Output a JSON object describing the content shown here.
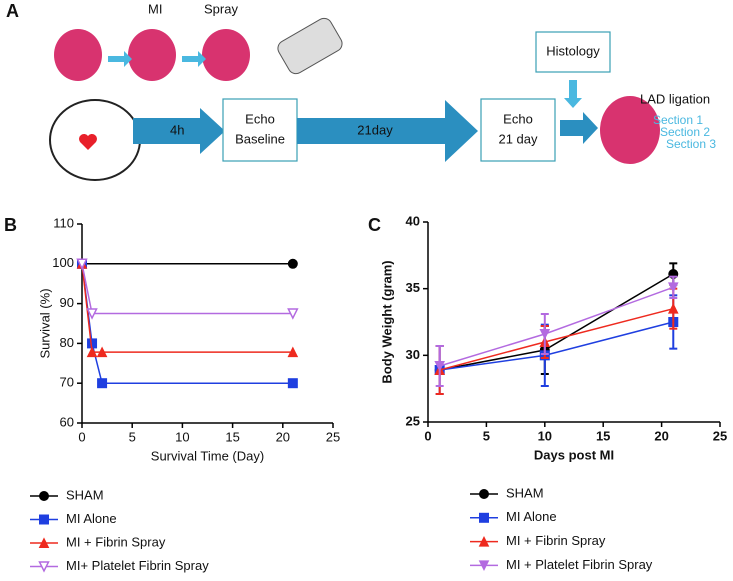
{
  "panel_labels": [
    "A",
    "B",
    "C"
  ],
  "diagram": {
    "mi": "MI",
    "spray": "Spray",
    "step1": "4h",
    "echo1": [
      "Echo",
      "Baseline"
    ],
    "step2": "21day",
    "echo2": [
      "Echo",
      "21 day"
    ],
    "histology": "Histology",
    "lad": "LAD ligation",
    "sections": [
      "Section 1",
      "Section 2",
      "Section 3"
    ]
  },
  "chart_data": [
    {
      "type": "line",
      "xlabel": "Survival Time (Day)",
      "ylabel": "Survival (%)",
      "xlim": [
        0,
        25
      ],
      "xticks": [
        0,
        5,
        10,
        15,
        20,
        25
      ],
      "ylim": [
        60,
        110
      ],
      "yticks": [
        60,
        70,
        80,
        90,
        100,
        110
      ],
      "series": [
        {
          "name": "SHAM",
          "color": "#000000",
          "marker": "circle",
          "x": [
            0,
            21
          ],
          "values": [
            100,
            100
          ]
        },
        {
          "name": "MI Alone",
          "color": "#1f3fe0",
          "marker": "square",
          "x": [
            0,
            1,
            2,
            21
          ],
          "values": [
            100,
            80,
            70,
            70
          ]
        },
        {
          "name": "MI + Fibrin Spray",
          "color": "#ee2a1f",
          "marker": "triangle",
          "x": [
            0,
            1,
            2,
            21
          ],
          "values": [
            100,
            77.8,
            77.8,
            77.8
          ]
        },
        {
          "name": "MI+ Platelet Fibrin Spray",
          "color": "#b36ae0",
          "marker": "triangle-down-open",
          "x": [
            0,
            1,
            21
          ],
          "values": [
            100,
            87.5,
            87.5
          ]
        }
      ]
    },
    {
      "type": "line",
      "xlabel": "Days post MI",
      "ylabel": "Body Weight (gram)",
      "xlim": [
        0,
        25
      ],
      "xticks": [
        0,
        5,
        10,
        15,
        20,
        25
      ],
      "ylim": [
        25,
        40
      ],
      "yticks": [
        25,
        30,
        35,
        40
      ],
      "series": [
        {
          "name": "SHAM",
          "color": "#000000",
          "marker": "circle",
          "x": [
            1,
            10,
            21
          ],
          "values": [
            28.9,
            30.4,
            36.1
          ],
          "errors": [
            0.2,
            1.8,
            0.8
          ]
        },
        {
          "name": "MI Alone",
          "color": "#1f3fe0",
          "marker": "square",
          "x": [
            1,
            10,
            21
          ],
          "values": [
            28.9,
            30.0,
            32.5
          ],
          "errors": [
            1.8,
            2.3,
            2.0
          ]
        },
        {
          "name": "MI + Fibrin Spray",
          "color": "#ee2a1f",
          "marker": "triangle",
          "x": [
            1,
            10,
            21
          ],
          "values": [
            28.9,
            31.0,
            33.5
          ],
          "errors": [
            1.8,
            1.2,
            1.5
          ]
        },
        {
          "name": "MI + Platelet Fibrin Spray",
          "color": "#b36ae0",
          "marker": "triangle-down",
          "x": [
            1,
            10,
            21
          ],
          "values": [
            29.2,
            31.6,
            35.1
          ],
          "errors": [
            1.5,
            1.5,
            0.8
          ]
        }
      ]
    }
  ]
}
